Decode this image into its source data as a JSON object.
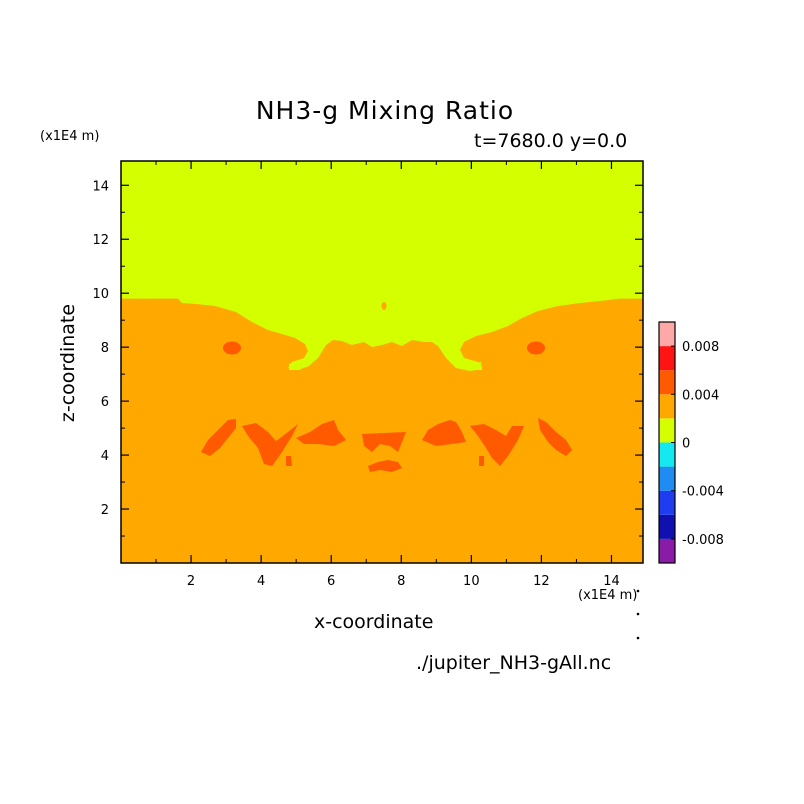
{
  "chart_data": {
    "type": "heatmap",
    "title": "NH3-g Mixing Ratio",
    "subtitle": "t=7680.0 y=0.0",
    "xlabel": "x-coordinate",
    "ylabel": "z-coordinate",
    "x_unit": "(x1E4 m)",
    "y_unit": "(x1E4 m)",
    "footer": "./jupiter_NH3-gAll.nc",
    "xlim": [
      0,
      14.9
    ],
    "ylim": [
      0,
      14.9
    ],
    "x_ticks": [
      2,
      4,
      6,
      8,
      10,
      12,
      14
    ],
    "y_ticks": [
      2,
      4,
      6,
      8,
      10,
      12,
      14
    ],
    "colorbar": {
      "levels": [
        {
          "lo": -0.01,
          "hi": -0.008,
          "color": "#8a1aa8"
        },
        {
          "lo": -0.008,
          "hi": -0.006,
          "color": "#1010b0"
        },
        {
          "lo": -0.006,
          "hi": -0.004,
          "color": "#1e3cf0"
        },
        {
          "lo": -0.004,
          "hi": -0.002,
          "color": "#1e8cf0"
        },
        {
          "lo": -0.002,
          "hi": 0,
          "color": "#14e8f0"
        },
        {
          "lo": 0,
          "hi": 0.002,
          "color": "#d4ff00"
        },
        {
          "lo": 0.002,
          "hi": 0.004,
          "color": "#ffa800"
        },
        {
          "lo": 0.004,
          "hi": 0.006,
          "color": "#ff5a00"
        },
        {
          "lo": 0.006,
          "hi": 0.008,
          "color": "#ff1414"
        },
        {
          "lo": 0.008,
          "hi": 0.01,
          "color": "#ffa8a8"
        }
      ],
      "tick_labels": [
        "0.008",
        "0.004",
        "0",
        "-0.004",
        "-0.008"
      ],
      "tick_values": [
        0.008,
        0.004,
        0,
        -0.004,
        -0.008
      ],
      "range": [
        -0.01,
        0.01
      ]
    },
    "regions": {
      "upper_value_band": "0 to 0.002",
      "lower_value_band": "0.002 to 0.004",
      "patch_value_band": "0.004 to 0.006",
      "interface_height": 9.8
    }
  }
}
